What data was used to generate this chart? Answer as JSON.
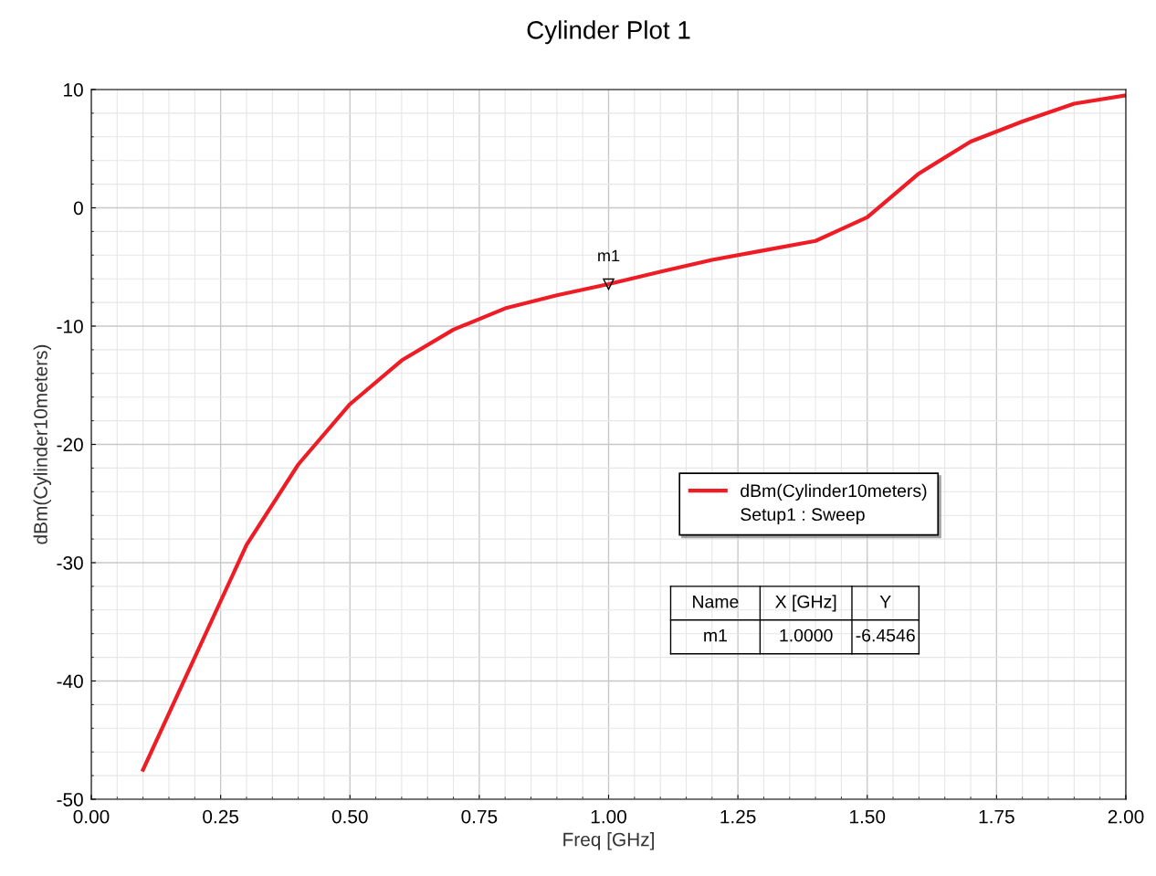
{
  "chart_data": {
    "type": "line",
    "title": "Cylinder Plot 1",
    "xlabel": "Freq [GHz]",
    "ylabel": "dBm(Cylinder10meters)",
    "x": [
      0.1,
      0.2,
      0.3,
      0.4,
      0.5,
      0.6,
      0.7,
      0.8,
      0.9,
      1.0,
      1.1,
      1.2,
      1.3,
      1.4,
      1.5,
      1.6,
      1.7,
      1.8,
      1.9,
      2.0
    ],
    "series": [
      {
        "name": "dBm(Cylinder10meters)",
        "color": "#ee1c25",
        "values": [
          -47.5,
          -38,
          -28.5,
          -21.7,
          -16.6,
          -12.9,
          -10.3,
          -8.5,
          -7.4,
          -6.4546,
          -5.4,
          -4.4,
          -3.6,
          -2.8,
          -0.8,
          2.9,
          5.6,
          7.3,
          8.8,
          9.5
        ]
      }
    ],
    "xlim": [
      0,
      2
    ],
    "xticks": [
      {
        "value": 0,
        "label": "0.00"
      },
      {
        "value": 0.25,
        "label": "0.25"
      },
      {
        "value": 0.5,
        "label": "0.50"
      },
      {
        "value": 0.75,
        "label": "0.75"
      },
      {
        "value": 1,
        "label": "1.00"
      },
      {
        "value": 1.25,
        "label": "1.25"
      },
      {
        "value": 1.5,
        "label": "1.50"
      },
      {
        "value": 1.75,
        "label": "1.75"
      },
      {
        "value": 2,
        "label": "2.00"
      }
    ],
    "ylim": [
      -50,
      10
    ],
    "yticks": [
      -50,
      -40,
      -30,
      -20,
      -10,
      0,
      10
    ],
    "grid": true,
    "legend": "right",
    "marker": "none",
    "line_style": "solid",
    "annotations": [
      "Setup1 : Sweep",
      "Name",
      "X [GHz]",
      "Y",
      "m1",
      "1.0000",
      "-6.4546",
      {
        "text": "m1",
        "x": 1.0,
        "y": -6.4546
      }
    ]
  }
}
